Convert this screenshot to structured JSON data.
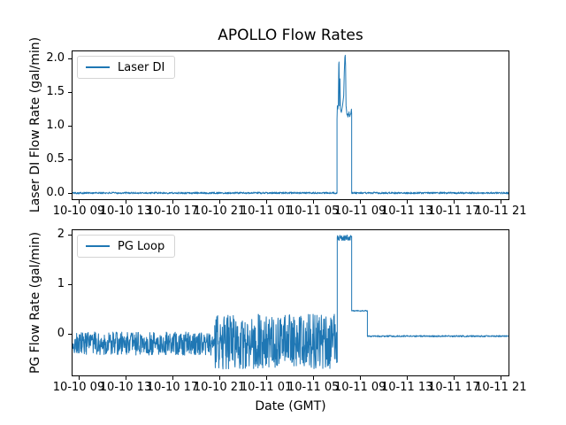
{
  "figure": {
    "title": "APOLLO Flow Rates",
    "xlabel": "Date (GMT)",
    "background": "#ffffff",
    "line_color": "#1f77b4",
    "axes_color": "#000000"
  },
  "chart_data": [
    {
      "type": "line",
      "title": "APOLLO Flow Rates",
      "ylabel": "Laser DI Flow Rate (gal/min)",
      "xlabel": "",
      "legend_label": "Laser DI",
      "legend_position": "upper left",
      "grid": false,
      "color": "#1f77b4",
      "seed": 101,
      "xlim_hours": [
        8.4,
        45.73
      ],
      "ylim": [
        -0.101,
        2.121
      ],
      "ytick_values": [
        0.0,
        0.5,
        1.0,
        1.5,
        2.0
      ],
      "ytick_labels": [
        "0.0",
        "0.5",
        "1.0",
        "1.5",
        "2.0"
      ],
      "xtick_hours": [
        9,
        13,
        17,
        21,
        25,
        29,
        33,
        37,
        41,
        45
      ],
      "xtick_labels": [
        "10-10 09",
        "10-10 13",
        "10-10 17",
        "10-10 21",
        "10-11 01",
        "10-11 05",
        "10-11 09",
        "10-11 13",
        "10-11 17",
        "10-11 21"
      ],
      "series": [
        {
          "name": "Laser DI",
          "color": "#1f77b4",
          "segments": [
            {
              "t": "noise",
              "from": 8.4,
              "to": 31.03,
              "min": -0.008,
              "max": 0.018
            },
            {
              "t": "pts",
              "pts": [
                [
                  31.03,
                  0.005
                ],
                [
                  31.03,
                  1.1
                ],
                [
                  31.06,
                  1.3
                ],
                [
                  31.1,
                  1.25
                ],
                [
                  31.14,
                  1.32
                ],
                [
                  31.18,
                  1.92
                ],
                [
                  31.2,
                  1.95
                ],
                [
                  31.24,
                  1.3
                ],
                [
                  31.28,
                  1.7
                ],
                [
                  31.32,
                  1.25
                ],
                [
                  31.4,
                  1.2
                ],
                [
                  31.5,
                  1.3
                ],
                [
                  31.6,
                  1.45
                ],
                [
                  31.65,
                  1.8
                ],
                [
                  31.7,
                  2.02
                ],
                [
                  31.73,
                  2.05
                ],
                [
                  31.76,
                  1.9
                ],
                [
                  31.8,
                  1.3
                ],
                [
                  31.85,
                  1.22
                ]
              ]
            },
            {
              "t": "noise",
              "from": 31.88,
              "to": 32.2,
              "min": 1.13,
              "max": 1.22
            },
            {
              "t": "pts",
              "pts": [
                [
                  32.22,
                  1.2
                ],
                [
                  32.26,
                  1.25
                ],
                [
                  32.28,
                  1.18
                ],
                [
                  32.28,
                  0.005
                ]
              ]
            },
            {
              "t": "noise",
              "from": 32.28,
              "to": 45.73,
              "min": -0.008,
              "max": 0.018
            }
          ]
        }
      ]
    },
    {
      "type": "line",
      "title": "",
      "ylabel": "PG Flow Rate (gal/min)",
      "xlabel": "Date (GMT)",
      "legend_label": "PG Loop",
      "legend_position": "upper left",
      "grid": false,
      "color": "#1f77b4",
      "seed": 202,
      "xlim_hours": [
        8.4,
        45.73
      ],
      "ylim": [
        -0.866,
        2.106
      ],
      "ytick_values": [
        0,
        1,
        2
      ],
      "ytick_labels": [
        "0",
        "1",
        "2"
      ],
      "xtick_hours": [
        9,
        13,
        17,
        21,
        25,
        29,
        33,
        37,
        41,
        45
      ],
      "xtick_labels": [
        "10-10 09",
        "10-10 13",
        "10-10 17",
        "10-10 21",
        "10-11 01",
        "10-11 05",
        "10-11 09",
        "10-11 13",
        "10-11 17",
        "10-11 21"
      ],
      "series": [
        {
          "name": "PG Loop",
          "color": "#1f77b4",
          "segments": [
            {
              "t": "noise",
              "from": 8.4,
              "to": 20.6,
              "min": -0.44,
              "max": 0.03
            },
            {
              "t": "noise",
              "from": 20.6,
              "to": 31.05,
              "min": -0.72,
              "max": 0.39
            },
            {
              "t": "pts",
              "pts": [
                [
                  31.05,
                  1.95
                ]
              ]
            },
            {
              "t": "noise",
              "from": 31.05,
              "to": 32.28,
              "min": 1.88,
              "max": 1.99
            },
            {
              "t": "pts",
              "pts": [
                [
                  32.28,
                  0.46
                ]
              ]
            },
            {
              "t": "noise",
              "from": 32.28,
              "to": 33.62,
              "min": 0.445,
              "max": 0.47
            },
            {
              "t": "pts",
              "pts": [
                [
                  33.62,
                  -0.055
                ]
              ]
            },
            {
              "t": "noise",
              "from": 33.62,
              "to": 45.73,
              "min": -0.068,
              "max": -0.04
            }
          ]
        }
      ]
    }
  ]
}
